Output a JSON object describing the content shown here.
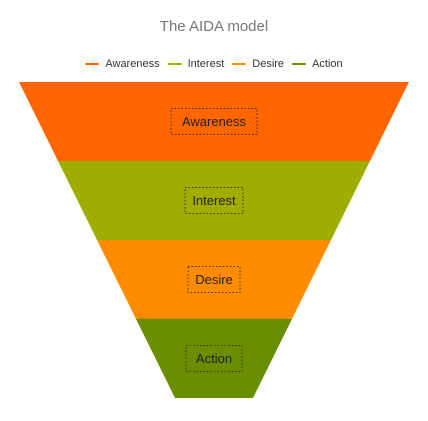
{
  "chart_data": {
    "type": "funnel",
    "title": "The AIDA model",
    "categories": [
      "Awareness",
      "Interest",
      "Desire",
      "Action"
    ],
    "values": [
      100,
      80,
      60,
      40
    ],
    "colors": [
      "#FF6600",
      "#A0AD00",
      "#FF8C00",
      "#6B8E00"
    ],
    "legend": {
      "position": "top-center",
      "entries": [
        "Awareness",
        "Interest",
        "Desire",
        "Action"
      ]
    }
  }
}
